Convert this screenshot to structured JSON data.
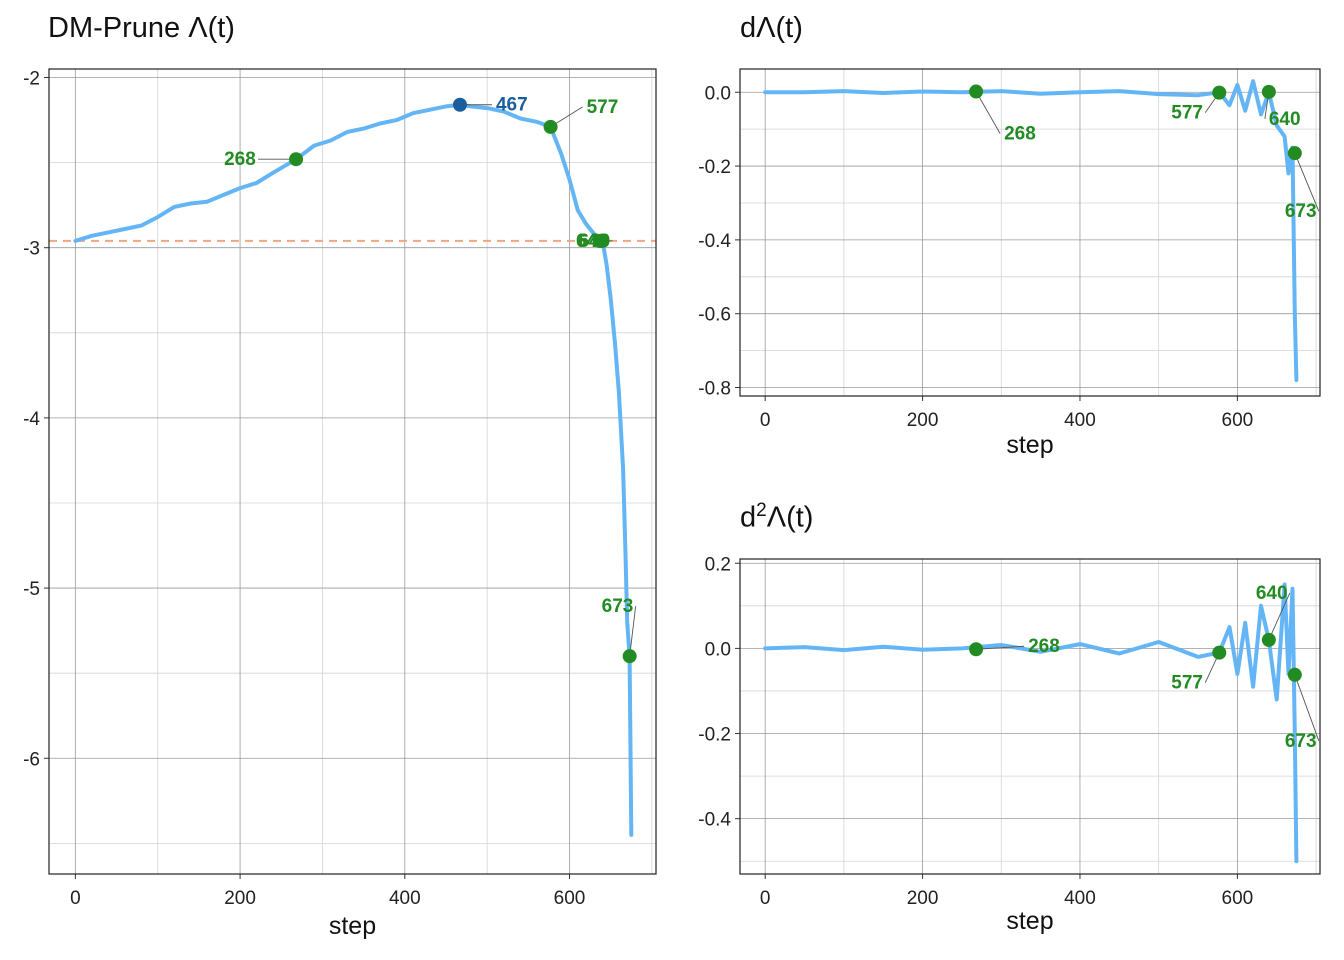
{
  "titles": {
    "main_prefix": "DM-Prune ",
    "main_suffix": "(t)",
    "d1_prefix": "d",
    "d1_suffix": "(t)",
    "d2_prefix": "d",
    "d2_power": "2",
    "d2_suffix": "(t)",
    "lambda_symbol": "Λ"
  },
  "colors": {
    "line": "#64B5F6",
    "marker_green": "#228B22",
    "marker_blue": "#1A5E9E",
    "reference_line": "#F4A582",
    "grid_major": "#9a9a9a",
    "grid_minor": "#d4d4d4"
  },
  "chart_data": [
    {
      "id": "lambda",
      "type": "line",
      "title": "DM-Prune Λ(t)",
      "xlabel": "step",
      "ylabel": "",
      "xlim": [
        -32,
        705
      ],
      "ylim": [
        -6.68,
        -1.95
      ],
      "xticks": [
        0,
        200,
        400,
        600
      ],
      "yticks": [
        -6,
        -5,
        -4,
        -3,
        -2
      ],
      "ytick_labels": [
        "-6",
        "-5",
        "-4",
        "-3",
        "-2"
      ],
      "grid": true,
      "reference_line": {
        "y": -2.96,
        "style": "dashed"
      },
      "series": [
        {
          "x": [
            0,
            20,
            40,
            60,
            80,
            100,
            120,
            140,
            160,
            180,
            200,
            220,
            240,
            268,
            290,
            310,
            330,
            350,
            370,
            390,
            410,
            430,
            450,
            467,
            480,
            500,
            520,
            540,
            560,
            577,
            590,
            600,
            610,
            620,
            630,
            640,
            645,
            650,
            655,
            660,
            665,
            668,
            670,
            673,
            675
          ],
          "y": [
            -2.96,
            -2.93,
            -2.91,
            -2.89,
            -2.87,
            -2.82,
            -2.76,
            -2.74,
            -2.73,
            -2.69,
            -2.65,
            -2.62,
            -2.56,
            -2.48,
            -2.4,
            -2.37,
            -2.32,
            -2.3,
            -2.27,
            -2.25,
            -2.21,
            -2.19,
            -2.17,
            -2.16,
            -2.17,
            -2.18,
            -2.2,
            -2.24,
            -2.26,
            -2.29,
            -2.45,
            -2.6,
            -2.78,
            -2.86,
            -2.92,
            -2.96,
            -3.1,
            -3.3,
            -3.55,
            -3.85,
            -4.3,
            -4.8,
            -5.2,
            -5.4,
            -6.45
          ]
        }
      ],
      "annotations": [
        {
          "x": 268,
          "y": -2.48,
          "label": "268",
          "color": "green"
        },
        {
          "x": 467,
          "y": -2.16,
          "label": "467",
          "color": "blue"
        },
        {
          "x": 577,
          "y": -2.29,
          "label": "577",
          "color": "green"
        },
        {
          "x": 637,
          "y": -2.96,
          "label": "640",
          "color": "green"
        },
        {
          "x": 640,
          "y": -2.96,
          "label": "640",
          "color": "green"
        },
        {
          "x": 673,
          "y": -5.4,
          "label": "673",
          "color": "green"
        }
      ]
    },
    {
      "id": "dlambda",
      "type": "line",
      "title": "dΛ(t)",
      "xlabel": "step",
      "ylabel": "",
      "xlim": [
        -32,
        705
      ],
      "ylim": [
        -0.823,
        0.063
      ],
      "xticks": [
        0,
        200,
        400,
        600
      ],
      "yticks": [
        -0.8,
        -0.6,
        -0.4,
        -0.2,
        0.0
      ],
      "ytick_labels": [
        "-0.8",
        "-0.6",
        "-0.4",
        "-0.2",
        "0.0"
      ],
      "grid": true,
      "series": [
        {
          "x": [
            0,
            50,
            100,
            150,
            200,
            250,
            300,
            350,
            400,
            450,
            500,
            550,
            577,
            590,
            600,
            610,
            620,
            630,
            640,
            650,
            660,
            665,
            670,
            673,
            675
          ],
          "y": [
            0.0,
            0.0,
            0.003,
            -0.002,
            0.002,
            0.0,
            0.003,
            -0.004,
            0.0,
            0.003,
            -0.005,
            -0.008,
            0.0,
            -0.035,
            0.02,
            -0.05,
            0.03,
            -0.06,
            0.0,
            -0.09,
            -0.12,
            -0.22,
            -0.15,
            -0.6,
            -0.78
          ]
        }
      ],
      "annotations": [
        {
          "x": 268,
          "y": 0.002,
          "label": "268",
          "color": "green"
        },
        {
          "x": 577,
          "y": -0.001,
          "label": "577",
          "color": "green"
        },
        {
          "x": 640,
          "y": 0.001,
          "label": "640",
          "color": "green"
        },
        {
          "x": 673,
          "y": -0.165,
          "label": "673",
          "color": "green"
        }
      ]
    },
    {
      "id": "d2lambda",
      "type": "line",
      "title": "d²Λ(t)",
      "xlabel": "step",
      "ylabel": "",
      "xlim": [
        -32,
        705
      ],
      "ylim": [
        -0.53,
        0.21
      ],
      "xticks": [
        0,
        200,
        400,
        600
      ],
      "yticks": [
        -0.4,
        -0.2,
        0.0,
        0.2
      ],
      "ytick_labels": [
        "-0.4",
        "-0.2",
        "0.0",
        "0.2"
      ],
      "grid": true,
      "series": [
        {
          "x": [
            0,
            50,
            100,
            150,
            200,
            250,
            300,
            350,
            400,
            450,
            500,
            550,
            577,
            590,
            600,
            610,
            620,
            630,
            640,
            650,
            660,
            665,
            670,
            673,
            675
          ],
          "y": [
            0.0,
            0.003,
            -0.004,
            0.004,
            -0.003,
            0.0,
            0.008,
            -0.008,
            0.01,
            -0.012,
            0.015,
            -0.02,
            -0.01,
            0.05,
            -0.06,
            0.06,
            -0.09,
            0.1,
            0.02,
            -0.12,
            0.15,
            -0.06,
            0.14,
            -0.2,
            -0.5
          ]
        }
      ],
      "annotations": [
        {
          "x": 268,
          "y": -0.002,
          "label": "268",
          "color": "green"
        },
        {
          "x": 577,
          "y": -0.01,
          "label": "577",
          "color": "green"
        },
        {
          "x": 640,
          "y": 0.02,
          "label": "640",
          "color": "green"
        },
        {
          "x": 673,
          "y": -0.062,
          "label": "673",
          "color": "green"
        }
      ]
    }
  ]
}
